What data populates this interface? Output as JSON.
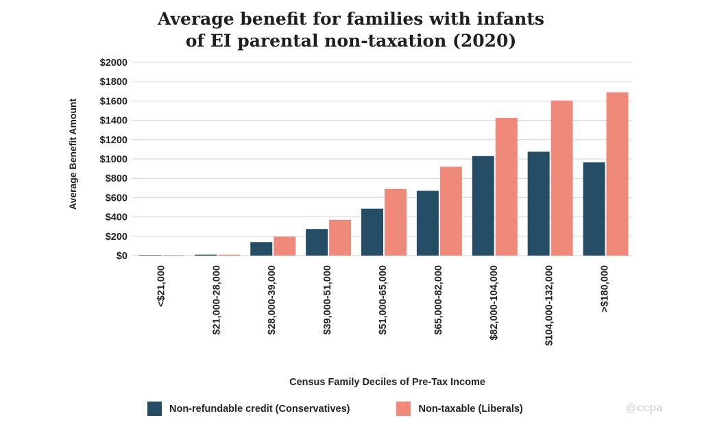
{
  "chart_data": {
    "type": "bar",
    "title_lines": [
      "Average benefit for families with infants",
      "of EI parental non-taxation (2020)"
    ],
    "xlabel": "Census Family Deciles of Pre-Tax Income",
    "ylabel": "Average Benefit Amount",
    "ylim": [
      0,
      2000
    ],
    "ytick_values": [
      0,
      200,
      400,
      600,
      800,
      1000,
      1200,
      1400,
      1600,
      1800,
      2000
    ],
    "ytick_labels": [
      "$0",
      "$200",
      "$400",
      "$600",
      "$800",
      "$1000",
      "$1200",
      "$1400",
      "$1600",
      "$1800",
      "$2000"
    ],
    "categories": [
      "<$21,000",
      "$21,000-28,000",
      "$28,000-39,000",
      "$39,000-51,000",
      "$51,000-65,000",
      "$65,000-82,000",
      "$82,000-104,000",
      "$104,000-132,000",
      ">$180,000"
    ],
    "series": [
      {
        "name": "Non-refundable credit (Conservatives)",
        "color": "#264d66",
        "values": [
          5,
          10,
          140,
          275,
          485,
          670,
          1030,
          1075,
          965
        ]
      },
      {
        "name": "Non-taxable (Liberals)",
        "color": "#ef8a7b",
        "values": [
          5,
          10,
          195,
          370,
          690,
          920,
          1425,
          1605,
          1690
        ]
      }
    ],
    "grid": true,
    "legend_position": "bottom"
  },
  "watermark": "@ccpa"
}
